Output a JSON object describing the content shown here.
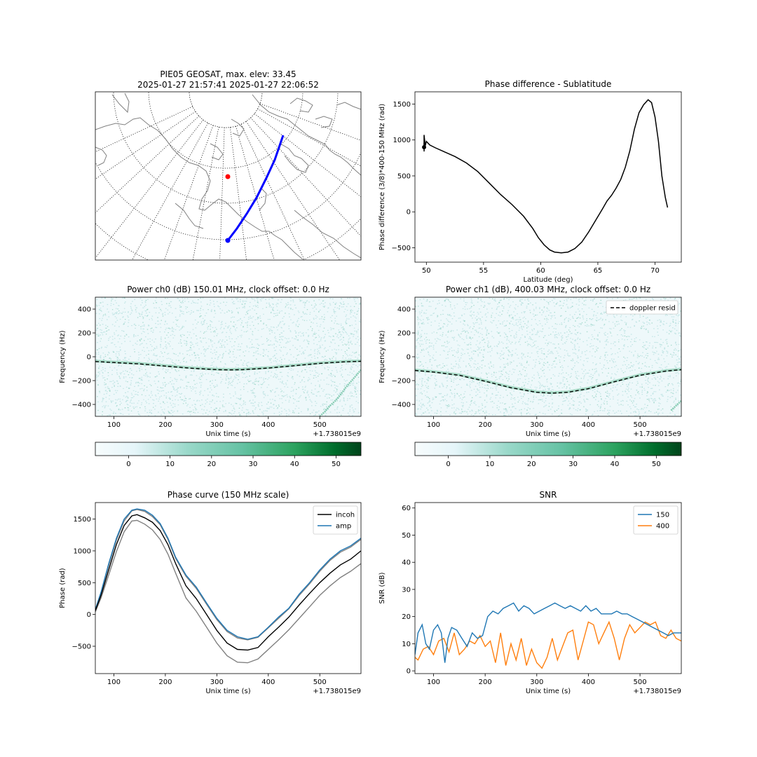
{
  "chart_data": [
    {
      "id": "map",
      "type": "map",
      "title_line1": "PIE05 GEOSAT, max. elev: 33.45",
      "title_line2": "2025-01-27 21:57:41 2025-01-27 22:06:52",
      "colors": {
        "track": "#0000ff",
        "station": "#ff0000",
        "coast": "#808080",
        "grid": "#000000"
      }
    },
    {
      "id": "phase-lat",
      "type": "line",
      "title": "Phase difference - Sublatitude",
      "xlabel": "Latitude (deg)",
      "ylabel": "Phase difference (3/8)*400-150 MHz (rad)",
      "xlim": [
        49.0,
        72.3
      ],
      "ylim": [
        -700,
        1670
      ],
      "xticks": [
        50,
        55,
        60,
        65,
        70
      ],
      "yticks": [
        -500,
        0,
        500,
        1000,
        1500
      ],
      "series": [
        {
          "color": "#000000",
          "x": [
            49.8,
            49.8,
            49.9,
            50.0,
            50.3,
            50.8,
            51.5,
            52.5,
            53.5,
            54.5,
            55.5,
            56.5,
            57.5,
            58.5,
            59.3,
            59.8,
            60.3,
            60.8,
            61.2,
            61.8,
            62.4,
            63.0,
            63.6,
            64.2,
            64.8,
            65.4,
            65.8,
            66.2,
            66.6,
            67.0,
            67.4,
            67.8,
            68.2,
            68.6,
            69.0,
            69.4,
            69.7,
            70.0,
            70.3,
            70.6,
            70.9,
            71.1
          ],
          "y": [
            900,
            1070,
            920,
            980,
            930,
            890,
            840,
            770,
            680,
            560,
            400,
            240,
            100,
            -60,
            -230,
            -360,
            -460,
            -530,
            -560,
            -570,
            -560,
            -510,
            -420,
            -280,
            -120,
            40,
            150,
            230,
            330,
            450,
            620,
            850,
            1150,
            1380,
            1490,
            1560,
            1520,
            1320,
            980,
            500,
            200,
            60
          ]
        }
      ],
      "errorbar": {
        "x": 49.8,
        "y": 900,
        "err": 60
      }
    },
    {
      "id": "power-ch0",
      "type": "heatmap",
      "title": "Power ch0 (dB) 150.01 MHz, clock offset: 0.0 Hz",
      "xlabel": "Unix time (s)",
      "ylabel": "Frequency (Hz)",
      "offset_label": "+1.738015e9",
      "xlim": [
        64,
        580
      ],
      "ylim": [
        -500,
        500
      ],
      "xticks": [
        100,
        200,
        300,
        400,
        500
      ],
      "yticks": [
        -400,
        -200,
        0,
        200,
        400
      ],
      "colorbar": {
        "ticks": [
          0,
          10,
          20,
          30,
          40,
          50
        ],
        "vmin": -8,
        "vmax": 56
      },
      "doppler_curve": {
        "x": [
          64,
          100,
          150,
          200,
          250,
          300,
          325,
          350,
          400,
          450,
          500,
          550,
          580
        ],
        "y": [
          -40,
          -48,
          -60,
          -78,
          -96,
          -108,
          -110,
          -108,
          -95,
          -75,
          -55,
          -42,
          -38
        ]
      },
      "secondary_trace": {
        "x": [
          500,
          510,
          520,
          530,
          540,
          550,
          560,
          570,
          580
        ],
        "y": [
          -500,
          -460,
          -410,
          -370,
          -320,
          -260,
          -210,
          -160,
          -110
        ]
      }
    },
    {
      "id": "power-ch1",
      "type": "heatmap",
      "title": "Power ch1 (dB), 400.03 MHz, clock offset: 0.0 Hz",
      "xlabel": "Unix time (s)",
      "ylabel": "Frequency (Hz)",
      "offset_label": "+1.738015e9",
      "xlim": [
        64,
        580
      ],
      "ylim": [
        -500,
        500
      ],
      "xticks": [
        100,
        200,
        300,
        400,
        500
      ],
      "yticks": [
        -400,
        -200,
        0,
        200,
        400
      ],
      "colorbar": {
        "ticks": [
          0,
          10,
          20,
          30,
          40,
          50
        ],
        "vmin": -8,
        "vmax": 56
      },
      "legend": [
        {
          "label": "doppler resid",
          "color": "#000000",
          "dash": true
        }
      ],
      "doppler_curve": {
        "x": [
          64,
          100,
          150,
          200,
          250,
          300,
          330,
          360,
          400,
          450,
          500,
          550,
          580
        ],
        "y": [
          -115,
          -128,
          -155,
          -205,
          -260,
          -298,
          -305,
          -298,
          -268,
          -210,
          -155,
          -120,
          -108
        ]
      },
      "secondary_trace": {
        "x": [
          560,
          570,
          580
        ],
        "y": [
          -450,
          -410,
          -370
        ]
      }
    },
    {
      "id": "phase-curve",
      "type": "line",
      "title": "Phase curve (150 MHz scale)",
      "xlabel": "Unix time (s)",
      "ylabel": "Phase (rad)",
      "offset_label": "+1.738015e9",
      "xlim": [
        64,
        580
      ],
      "ylim": [
        -930,
        1760
      ],
      "xticks": [
        100,
        200,
        300,
        400,
        500
      ],
      "yticks": [
        -500,
        0,
        500,
        1000,
        1500
      ],
      "legend_placement": "top-right",
      "series": [
        {
          "name": "incoh",
          "color": "#000000",
          "x": [
            64,
            75,
            90,
            105,
            120,
            135,
            145,
            160,
            175,
            190,
            205,
            220,
            240,
            260,
            280,
            300,
            320,
            340,
            360,
            380,
            400,
            420,
            440,
            460,
            480,
            500,
            520,
            540,
            560,
            580
          ],
          "y": [
            60,
            300,
            700,
            1100,
            1400,
            1550,
            1570,
            1520,
            1450,
            1320,
            1100,
            800,
            450,
            250,
            0,
            -250,
            -450,
            -550,
            -560,
            -520,
            -350,
            -200,
            -40,
            150,
            330,
            500,
            650,
            780,
            870,
            1000
          ]
        },
        {
          "name": "amp",
          "color": "#1f77b4",
          "x": [
            64,
            75,
            90,
            105,
            120,
            135,
            145,
            160,
            175,
            190,
            205,
            220,
            240,
            260,
            280,
            300,
            320,
            340,
            360,
            380,
            400,
            420,
            440,
            460,
            480,
            500,
            520,
            540,
            560,
            580
          ],
          "y": [
            80,
            350,
            800,
            1200,
            1500,
            1640,
            1660,
            1640,
            1560,
            1430,
            1200,
            900,
            620,
            430,
            180,
            -60,
            -250,
            -350,
            -390,
            -350,
            -200,
            -40,
            100,
            320,
            500,
            700,
            870,
            1000,
            1080,
            1200
          ]
        },
        {
          "color": "#808080",
          "x": [
            64,
            75,
            90,
            105,
            120,
            135,
            145,
            160,
            175,
            190,
            205,
            220,
            240,
            260,
            280,
            300,
            320,
            340,
            360,
            380,
            400,
            420,
            440,
            460,
            480,
            500,
            520,
            540,
            560,
            580
          ],
          "y": [
            40,
            260,
            620,
            990,
            1300,
            1470,
            1480,
            1420,
            1330,
            1180,
            950,
            650,
            260,
            50,
            -200,
            -450,
            -650,
            -750,
            -760,
            -700,
            -550,
            -400,
            -240,
            -60,
            120,
            300,
            450,
            580,
            680,
            800
          ]
        },
        {
          "color": "#808080",
          "x": [
            64,
            75,
            90,
            105,
            120,
            135,
            145,
            160,
            175,
            190,
            205,
            220,
            240,
            260,
            280,
            300,
            320,
            340,
            360,
            380,
            400,
            420,
            440,
            460,
            480,
            500,
            520,
            540,
            560,
            580
          ],
          "y": [
            75,
            330,
            770,
            1170,
            1470,
            1630,
            1650,
            1620,
            1540,
            1410,
            1180,
            880,
            600,
            410,
            160,
            -80,
            -270,
            -370,
            -400,
            -360,
            -210,
            -60,
            90,
            300,
            480,
            680,
            850,
            980,
            1060,
            1180
          ]
        }
      ]
    },
    {
      "id": "snr",
      "type": "line",
      "title": "SNR",
      "xlabel": "Unix time (s)",
      "ylabel": "SNR (dB)",
      "offset_label": "+1.738015e9",
      "xlim": [
        64,
        580
      ],
      "ylim": [
        -1,
        62
      ],
      "xticks": [
        100,
        200,
        300,
        400,
        500
      ],
      "yticks": [
        0,
        10,
        20,
        30,
        40,
        50,
        60
      ],
      "legend_placement": "top-right",
      "series": [
        {
          "name": "150",
          "color": "#1f77b4",
          "x": [
            64,
            70,
            78,
            85,
            92,
            100,
            108,
            115,
            122,
            128,
            135,
            145,
            155,
            165,
            175,
            185,
            195,
            205,
            215,
            225,
            235,
            245,
            255,
            265,
            275,
            285,
            295,
            305,
            315,
            325,
            335,
            345,
            355,
            365,
            375,
            385,
            395,
            405,
            415,
            425,
            435,
            445,
            455,
            465,
            475,
            485,
            495,
            505,
            515,
            525,
            535,
            545,
            555,
            565,
            580
          ],
          "y": [
            6,
            14,
            17,
            10,
            8,
            15,
            17,
            14,
            3,
            12,
            16,
            15,
            12,
            9,
            14,
            12,
            13,
            20,
            22,
            21,
            23,
            24,
            25,
            22,
            24,
            23,
            21,
            22,
            23,
            24,
            25,
            24,
            23,
            24,
            23,
            22,
            24,
            22,
            23,
            21,
            21,
            21,
            22,
            21,
            21,
            20,
            19,
            18,
            17,
            16,
            15,
            14,
            13,
            14,
            14
          ]
        },
        {
          "name": "400",
          "color": "#ff7f0e",
          "x": [
            64,
            70,
            80,
            90,
            100,
            110,
            120,
            130,
            140,
            150,
            160,
            170,
            180,
            190,
            200,
            210,
            220,
            230,
            240,
            250,
            260,
            270,
            280,
            290,
            300,
            310,
            320,
            330,
            340,
            350,
            360,
            370,
            380,
            390,
            400,
            410,
            420,
            430,
            440,
            450,
            460,
            470,
            480,
            490,
            500,
            510,
            520,
            530,
            540,
            550,
            560,
            570,
            580
          ],
          "y": [
            5,
            4,
            8,
            9,
            6,
            11,
            12,
            7,
            14,
            6,
            8,
            11,
            10,
            13,
            9,
            11,
            3,
            14,
            2,
            10,
            4,
            12,
            2,
            8,
            3,
            1,
            5,
            12,
            4,
            9,
            14,
            15,
            4,
            11,
            18,
            17,
            10,
            14,
            18,
            12,
            4,
            12,
            17,
            14,
            16,
            18,
            17,
            18,
            13,
            12,
            15,
            12,
            11
          ]
        }
      ]
    }
  ]
}
